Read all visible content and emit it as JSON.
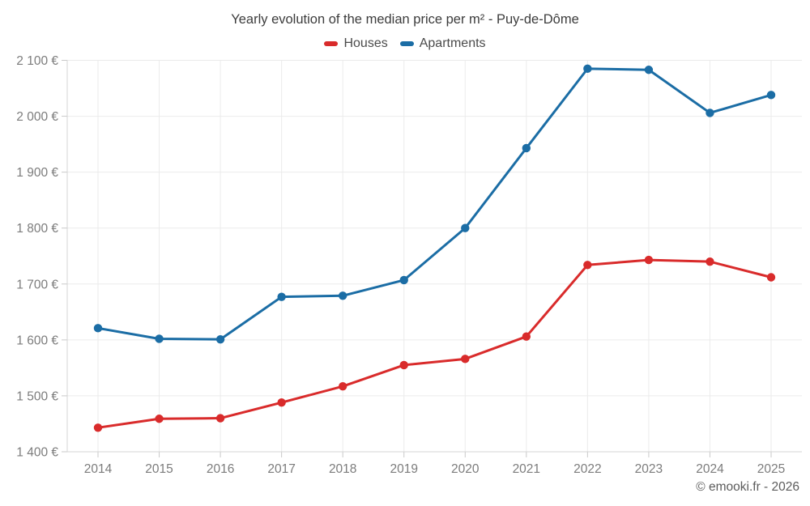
{
  "page": {
    "title": "Yearly evolution of the median price per m² - Puy-de-Dôme",
    "footer": "© emooki.fr - 2026"
  },
  "legend": {
    "items": [
      {
        "label": "Houses",
        "color": "#d92b2b"
      },
      {
        "label": "Apartments",
        "color": "#1b6da5"
      }
    ]
  },
  "palette": {
    "background": "#ffffff",
    "grid": "#ebebeb",
    "axis": "#d4d4d4",
    "tick": "#c9c9c9",
    "axis_label": "#7c7c7c",
    "title_text": "#3c3c3c",
    "legend_text": "#4a4a4a",
    "footer_text": "#5c5c5c"
  },
  "chart_data": {
    "type": "line",
    "title": "Yearly evolution of the median price per m² - Puy-de-Dôme",
    "categories": [
      "2014",
      "2015",
      "2016",
      "2017",
      "2018",
      "2019",
      "2020",
      "2021",
      "2022",
      "2023",
      "2024",
      "2025"
    ],
    "series": [
      {
        "name": "Houses",
        "color": "#d92b2b",
        "values": [
          1443,
          1459,
          1460,
          1488,
          1517,
          1555,
          1566,
          1606,
          1734,
          1743,
          1740,
          1712
        ]
      },
      {
        "name": "Apartments",
        "color": "#1b6da5",
        "values": [
          1621,
          1602,
          1601,
          1677,
          1679,
          1707,
          1800,
          1943,
          2085,
          2083,
          2006,
          2038
        ]
      }
    ],
    "xlabel": "",
    "ylabel": "",
    "ylim": [
      1400,
      2100
    ],
    "yticks": [
      1400,
      1500,
      1600,
      1700,
      1800,
      1900,
      2000,
      2100
    ],
    "ytick_labels": [
      "1 400 €",
      "1 500 €",
      "1 600 €",
      "1 700 €",
      "1 800 €",
      "1 900 €",
      "2 000 €",
      "2 100 €"
    ],
    "grid": true,
    "legend_position": "top",
    "marker": "circle"
  }
}
